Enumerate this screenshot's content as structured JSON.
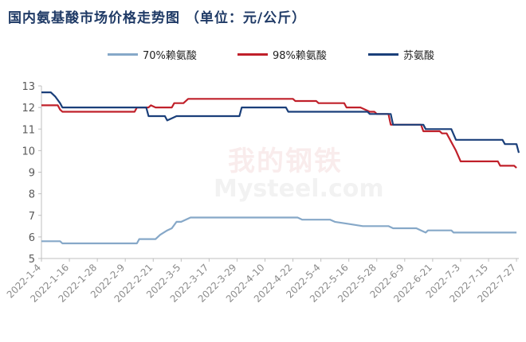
{
  "title": "国内氨基酸市场价格走势图 （单位：元/公斤）",
  "watermark": {
    "cn": "我的钢铁",
    "en": "Mysteel.com"
  },
  "legend": [
    {
      "label": "70%赖氨酸",
      "color": "#86a8c8"
    },
    {
      "label": "98%赖氨酸",
      "color": "#c0202a"
    },
    {
      "label": "苏氨酸",
      "color": "#1a3f7a"
    }
  ],
  "chart_data": {
    "type": "line",
    "x_ticks": [
      "2022-1-4",
      "2022-1-16",
      "2022-1-28",
      "2022-2-9",
      "2022-2-21",
      "2022-3-5",
      "2022-3-17",
      "2022-3-29",
      "2022-4-10",
      "2022-4-22",
      "2022-5-4",
      "2022-5-16",
      "2022-5-28",
      "2022-6-9",
      "2022-6-21",
      "2022-7-3",
      "2022-7-15",
      "2022-7-27"
    ],
    "ylim": [
      5,
      13
    ],
    "yticks": [
      5,
      6,
      7,
      8,
      9,
      10,
      11,
      12,
      13
    ],
    "grid": false,
    "legend_position": "top",
    "series": [
      {
        "name": "70%赖氨酸",
        "color": "#86a8c8",
        "points": [
          [
            "2022-01-04",
            5.8
          ],
          [
            "2022-01-12",
            5.8
          ],
          [
            "2022-01-13",
            5.7
          ],
          [
            "2022-02-14",
            5.7
          ],
          [
            "2022-02-15",
            5.9
          ],
          [
            "2022-02-22",
            5.9
          ],
          [
            "2022-02-24",
            6.1
          ],
          [
            "2022-02-27",
            6.3
          ],
          [
            "2022-03-01",
            6.4
          ],
          [
            "2022-03-03",
            6.7
          ],
          [
            "2022-03-05",
            6.7
          ],
          [
            "2022-03-09",
            6.9
          ],
          [
            "2022-04-24",
            6.9
          ],
          [
            "2022-04-26",
            6.8
          ],
          [
            "2022-05-08",
            6.8
          ],
          [
            "2022-05-10",
            6.7
          ],
          [
            "2022-05-16",
            6.6
          ],
          [
            "2022-05-22",
            6.5
          ],
          [
            "2022-06-02",
            6.5
          ],
          [
            "2022-06-04",
            6.4
          ],
          [
            "2022-06-14",
            6.4
          ],
          [
            "2022-06-16",
            6.3
          ],
          [
            "2022-06-18",
            6.2
          ],
          [
            "2022-06-19",
            6.3
          ],
          [
            "2022-06-29",
            6.3
          ],
          [
            "2022-06-30",
            6.2
          ],
          [
            "2022-07-27",
            6.2
          ]
        ]
      },
      {
        "name": "98%赖氨酸",
        "color": "#c0202a",
        "points": [
          [
            "2022-01-04",
            12.1
          ],
          [
            "2022-01-11",
            12.1
          ],
          [
            "2022-01-12",
            11.9
          ],
          [
            "2022-01-13",
            11.8
          ],
          [
            "2022-02-13",
            11.8
          ],
          [
            "2022-02-14",
            12.0
          ],
          [
            "2022-02-19",
            12.0
          ],
          [
            "2022-02-20",
            12.1
          ],
          [
            "2022-02-22",
            12.0
          ],
          [
            "2022-03-01",
            12.0
          ],
          [
            "2022-03-02",
            12.2
          ],
          [
            "2022-03-06",
            12.2
          ],
          [
            "2022-03-08",
            12.4
          ],
          [
            "2022-04-22",
            12.4
          ],
          [
            "2022-04-23",
            12.3
          ],
          [
            "2022-05-02",
            12.3
          ],
          [
            "2022-05-03",
            12.2
          ],
          [
            "2022-05-14",
            12.2
          ],
          [
            "2022-05-15",
            12.0
          ],
          [
            "2022-05-21",
            12.0
          ],
          [
            "2022-05-25",
            11.8
          ],
          [
            "2022-05-27",
            11.8
          ],
          [
            "2022-05-28",
            11.7
          ],
          [
            "2022-06-02",
            11.7
          ],
          [
            "2022-06-03",
            11.2
          ],
          [
            "2022-06-16",
            11.2
          ],
          [
            "2022-06-17",
            10.9
          ],
          [
            "2022-06-24",
            10.9
          ],
          [
            "2022-06-25",
            10.8
          ],
          [
            "2022-06-27",
            10.8
          ],
          [
            "2022-07-01",
            10.0
          ],
          [
            "2022-07-03",
            9.5
          ],
          [
            "2022-07-19",
            9.5
          ],
          [
            "2022-07-20",
            9.3
          ],
          [
            "2022-07-26",
            9.3
          ],
          [
            "2022-07-27",
            9.2
          ]
        ]
      },
      {
        "name": "苏氨酸",
        "color": "#1a3f7a",
        "points": [
          [
            "2022-01-04",
            12.7
          ],
          [
            "2022-01-08",
            12.7
          ],
          [
            "2022-01-10",
            12.5
          ],
          [
            "2022-01-12",
            12.2
          ],
          [
            "2022-01-13",
            12.0
          ],
          [
            "2022-02-18",
            12.0
          ],
          [
            "2022-02-19",
            11.6
          ],
          [
            "2022-02-26",
            11.6
          ],
          [
            "2022-02-27",
            11.4
          ],
          [
            "2022-03-01",
            11.5
          ],
          [
            "2022-03-03",
            11.6
          ],
          [
            "2022-03-30",
            11.6
          ],
          [
            "2022-03-31",
            12.0
          ],
          [
            "2022-04-19",
            12.0
          ],
          [
            "2022-04-20",
            11.8
          ],
          [
            "2022-05-24",
            11.8
          ],
          [
            "2022-05-25",
            11.7
          ],
          [
            "2022-06-03",
            11.7
          ],
          [
            "2022-06-04",
            11.2
          ],
          [
            "2022-06-17",
            11.2
          ],
          [
            "2022-06-18",
            11.0
          ],
          [
            "2022-06-29",
            11.0
          ],
          [
            "2022-07-01",
            10.5
          ],
          [
            "2022-07-21",
            10.5
          ],
          [
            "2022-07-22",
            10.3
          ],
          [
            "2022-07-27",
            10.3
          ],
          [
            "2022-07-28",
            9.9
          ]
        ]
      }
    ]
  }
}
